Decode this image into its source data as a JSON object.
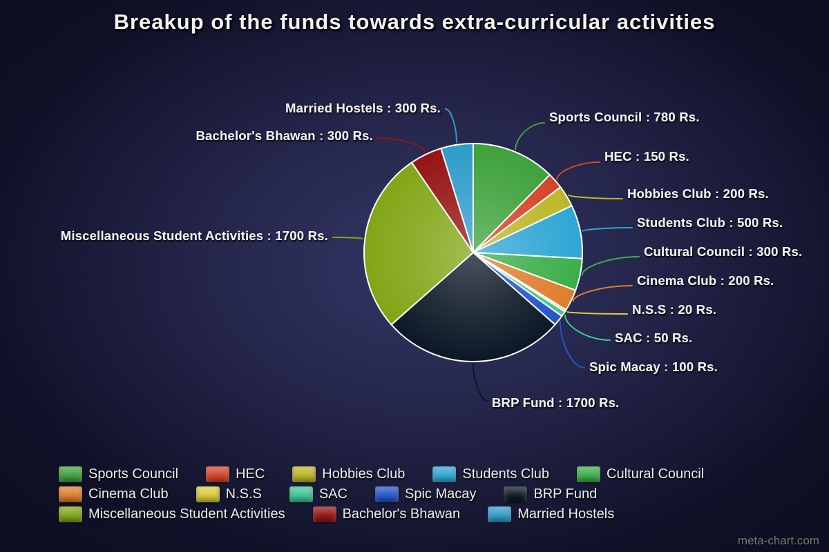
{
  "page": {
    "watermark": "meta-chart.com"
  },
  "chart_data": {
    "type": "pie",
    "title": "Breakup of the funds towards extra-curricular activities",
    "unit": "Rs.",
    "legend_position": "bottom",
    "start_angle": "top, clockwise",
    "categories": [
      "Sports Council",
      "HEC",
      "Hobbies Club",
      "Students Club",
      "Cultural Council",
      "Cinema Club",
      "N.S.S",
      "SAC",
      "Spic Macay",
      "BRP Fund",
      "Miscellaneous Student Activities",
      "Bachelor's Bhawan",
      "Married Hostels"
    ],
    "values": [
      780,
      150,
      200,
      500,
      300,
      200,
      20,
      50,
      100,
      1700,
      1700,
      300,
      300
    ],
    "colors": [
      "#3fa23c",
      "#d54427",
      "#bdb728",
      "#2fa7d4",
      "#3dae4a",
      "#e07e2e",
      "#dccb3a",
      "#41c594",
      "#2453cc",
      "#0c1826",
      "#82a617",
      "#951414",
      "#2f9cc9"
    ],
    "callout_labels": [
      "Sports Council : 780 Rs.",
      "HEC : 150 Rs.",
      "Hobbies Club : 200 Rs.",
      "Students Club : 500 Rs.",
      "Cultural Council : 300 Rs.",
      "Cinema Club : 200 Rs.",
      "N.S.S : 20 Rs.",
      "SAC : 50 Rs.",
      "Spic Macay : 100 Rs.",
      "BRP Fund : 1700 Rs.",
      "Miscellaneous Student Activities : 1700 Rs.",
      "Bachelor's Bhawan : 300 Rs.",
      "Married Hostels : 300 Rs."
    ]
  }
}
